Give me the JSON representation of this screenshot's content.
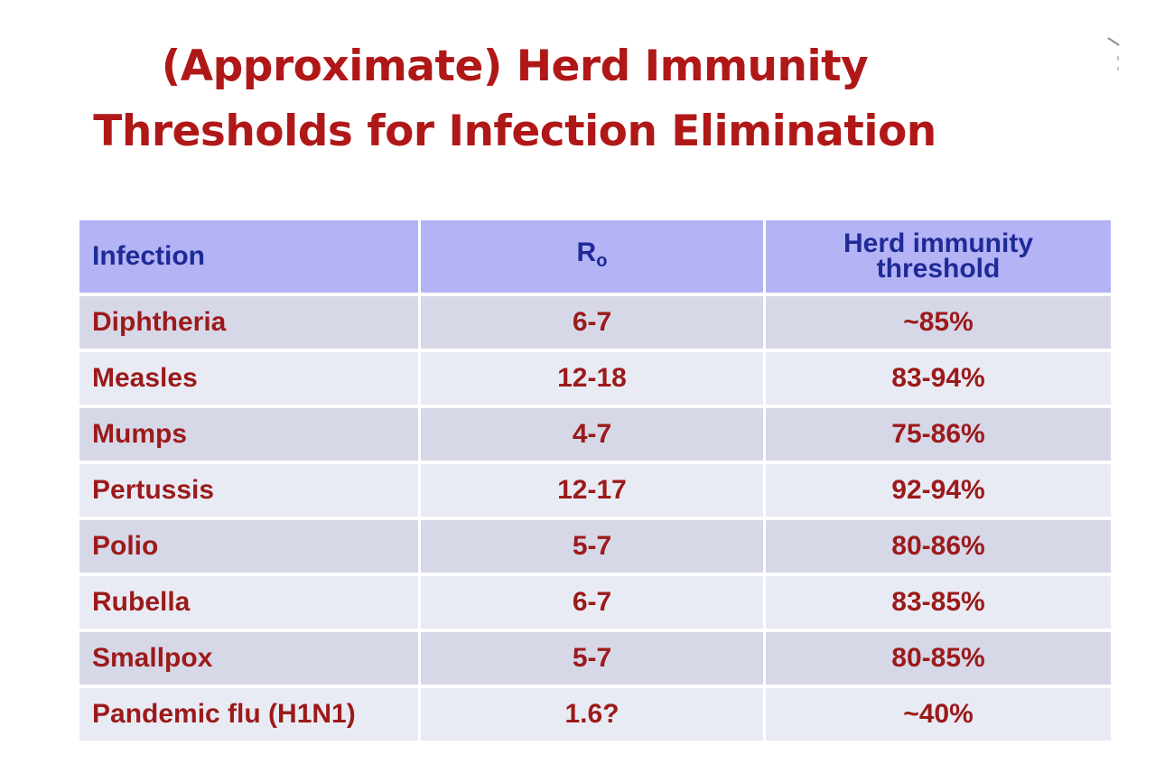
{
  "title": {
    "line1": "(Approximate) Herd Immunity",
    "line2": "Thresholds for Infection Elimination"
  },
  "table": {
    "headers": {
      "infection": "Infection",
      "r0_base": "R",
      "r0_sub": "o",
      "threshold_line1": "Herd immunity",
      "threshold_line2": "threshold"
    },
    "rows": [
      {
        "infection": "Diphtheria",
        "r0": "6-7",
        "threshold": "~85%"
      },
      {
        "infection": "Measles",
        "r0": "12-18",
        "threshold": "83-94%"
      },
      {
        "infection": "Mumps",
        "r0": "4-7",
        "threshold": "75-86%"
      },
      {
        "infection": "Pertussis",
        "r0": "12-17",
        "threshold": "92-94%"
      },
      {
        "infection": "Polio",
        "r0": "5-7",
        "threshold": "80-86%"
      },
      {
        "infection": "Rubella",
        "r0": "6-7",
        "threshold": "83-85%"
      },
      {
        "infection": "Smallpox",
        "r0": "5-7",
        "threshold": "80-85%"
      },
      {
        "infection": "Pandemic flu (H1N1)",
        "r0": "1.6?",
        "threshold": "~40%"
      }
    ]
  },
  "colors": {
    "title": "#b01818",
    "header_bg": "#b3b3f5",
    "header_text": "#1e2a96",
    "row_odd_bg": "#d6d8e8",
    "row_even_bg": "#e9ebf4",
    "cell_text": "#9c1a1a"
  }
}
